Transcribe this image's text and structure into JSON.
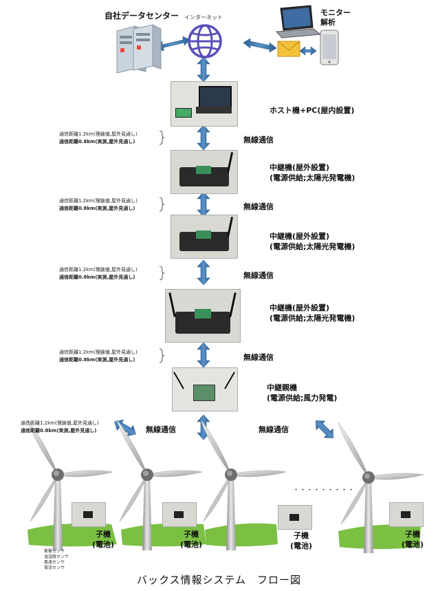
{
  "top": {
    "datacenter": "自社データセンター",
    "internet": "インターネット",
    "monitor_line1": "モニター",
    "monitor_line2": "解析"
  },
  "host": {
    "label": "ホスト機+PC(屋内設置)"
  },
  "links": [
    {
      "dist1": "通信距離1.2km(理論値,屋外見通し)",
      "dist2": "通信距離0.8km(実測,屋外見通し)",
      "label": "無線通信"
    },
    {
      "dist1": "通信距離1.2km(理論値,屋外見通し)",
      "dist2": "通信距離0.8km(実測,屋外見通し)",
      "label": "無線通信"
    },
    {
      "dist1": "通信距離1.2km(理論値,屋外見通し)",
      "dist2": "通信距離0.8km(実測,屋外見通し)",
      "label": "無線通信"
    },
    {
      "dist1": "通信距離1.2km(理論値,屋外見通し)",
      "dist2": "通信距離0.8km(実測,屋外見通し)",
      "label": "無線通信"
    }
  ],
  "relays": [
    {
      "line1": "中継機(屋外設置)",
      "line2": "(電源供給;太陽光発電機)"
    },
    {
      "line1": "中継機(屋外設置)",
      "line2": "(電源供給;太陽光発電機)"
    },
    {
      "line1": "中継機(屋外設置)",
      "line2": "(電源供給;太陽光発電機)"
    }
  ],
  "parent": {
    "line1": "中継親機",
    "line2": "(電源供給;風力発電)"
  },
  "bottom_link": {
    "dist1": "通信距離1.2km(理論値,屋外見通し)",
    "dist2": "通信距離0.8km(実測,屋外見通し)",
    "label_center": "無線通信",
    "label_right": "無線通信"
  },
  "children": [
    {
      "line1": "子機",
      "line2": "(電池)"
    },
    {
      "line1": "子機",
      "line2": "(電池)"
    },
    {
      "line1": "子機",
      "line2": "(電池)"
    },
    {
      "line1": "子機",
      "line2": "(電池)"
    }
  ],
  "ellipsis": "・・・・・・・・・",
  "sensors": [
    "衝撃センサ",
    "温湿度センサ",
    "風速センサ",
    "電流センサ"
  ],
  "caption": "バックス情報システム　フロー図",
  "colors": {
    "arrow": "#3f79b0",
    "arrow_dark": "#2d5f91",
    "grass": "#7bc043",
    "globe": "#5a4fb8"
  }
}
